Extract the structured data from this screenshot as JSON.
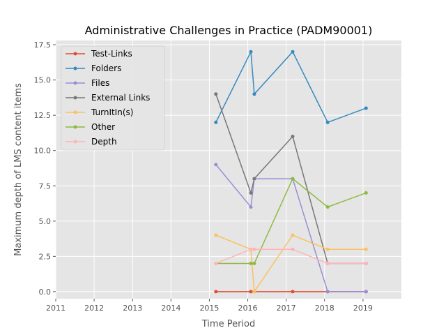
{
  "chart_data": {
    "type": "line",
    "title": "Administrative Challenges in Practice (PADM90001)",
    "xlabel": "Time Period",
    "ylabel": "Maximum depth of LMS content items",
    "xlim": [
      2011,
      2020
    ],
    "ylim": [
      -0.5,
      17.8
    ],
    "x_ticks": [
      "2011",
      "2012",
      "2013",
      "2014",
      "2015",
      "2016",
      "2017",
      "2018",
      "2019"
    ],
    "y_ticks": [
      "0.0",
      "2.5",
      "5.0",
      "7.5",
      "10.0",
      "12.5",
      "15.0",
      "17.5"
    ],
    "grid": true,
    "legend_position": "upper-left",
    "x": [
      2015.17,
      2016.08,
      2016.17,
      2017.17,
      2018.08,
      2019.08
    ],
    "series": [
      {
        "name": "Test-Links",
        "color": "#E24A33",
        "values": [
          0,
          0,
          0,
          0,
          0,
          0
        ]
      },
      {
        "name": "Folders",
        "color": "#348ABD",
        "values": [
          12,
          17,
          14,
          17,
          12,
          13
        ]
      },
      {
        "name": "Files",
        "color": "#988ED5",
        "values": [
          9,
          6,
          8,
          8,
          0,
          0
        ]
      },
      {
        "name": "External Links",
        "color": "#777777",
        "values": [
          14,
          7,
          8,
          11,
          2,
          2
        ]
      },
      {
        "name": "TurnItIn(s)",
        "color": "#FBC15E",
        "values": [
          4,
          3,
          0,
          4,
          3,
          3
        ]
      },
      {
        "name": "Other",
        "color": "#8EBA42",
        "values": [
          2,
          2,
          2,
          8,
          6,
          7
        ]
      },
      {
        "name": "Depth",
        "color": "#FFB5B8",
        "values": [
          2,
          3,
          3,
          3,
          2,
          2
        ]
      }
    ]
  }
}
